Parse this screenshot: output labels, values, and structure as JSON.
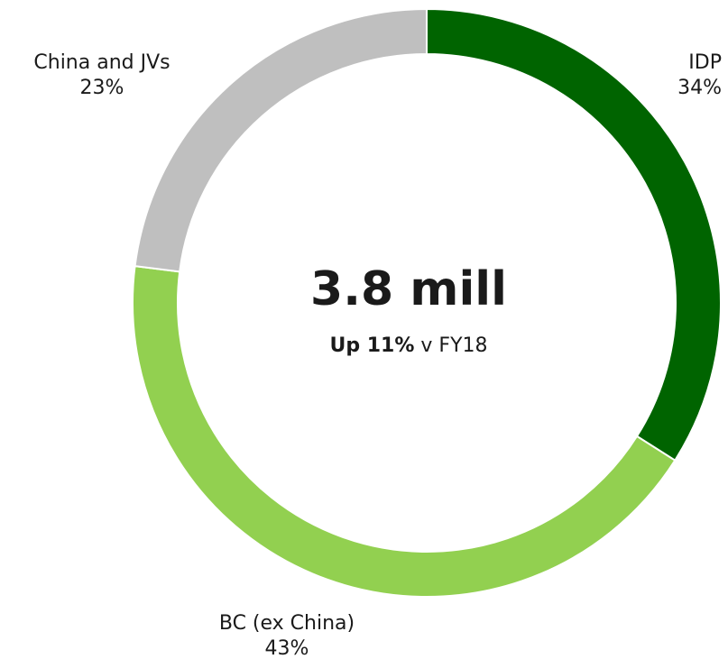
{
  "chart_data": {
    "type": "donut",
    "categories": [
      "IDP",
      "BC (ex China)",
      "China and JVs"
    ],
    "values": [
      34,
      43,
      23
    ],
    "value_labels": [
      "34%",
      "43%",
      "23%"
    ],
    "colors": [
      "#006400",
      "#92d050",
      "#bfbfbf"
    ],
    "center_label": "3.8 mill",
    "center_note_bold": "Up 11%",
    "center_note": "v FY18"
  }
}
